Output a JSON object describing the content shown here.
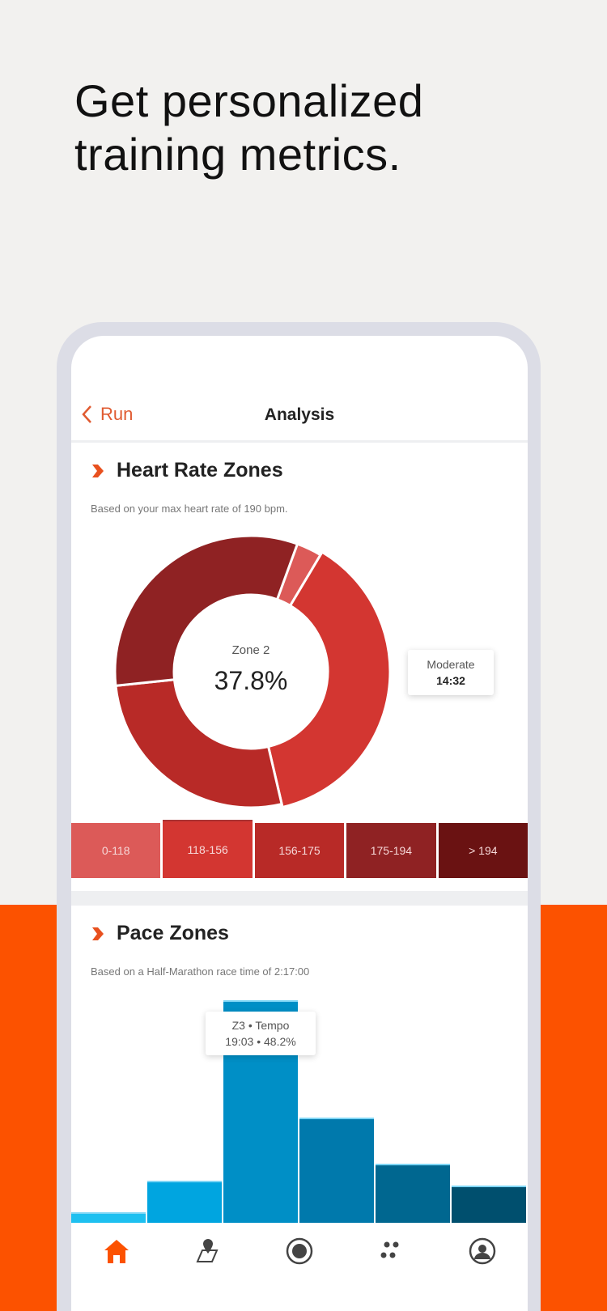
{
  "headline": {
    "line1": "Get personalized",
    "line2": "training metrics."
  },
  "nav": {
    "back_label": "Run",
    "title": "Analysis"
  },
  "heart_rate": {
    "title": "Heart Rate Zones",
    "subtitle": "Based on your max heart rate of 190 bpm.",
    "center_label": "Zone 2",
    "center_value": "37.8%",
    "tooltip_label": "Moderate",
    "tooltip_value": "14:32",
    "zones": [
      {
        "range": "0-118",
        "color": "#dc5a58",
        "percent": 3
      },
      {
        "range": "118-156",
        "color": "#d33631",
        "percent": 37.8
      },
      {
        "range": "156-175",
        "color": "#b82a27",
        "percent": 27
      },
      {
        "range": "175-194",
        "color": "#8f2223",
        "percent": 32.2
      },
      {
        "range": "> 194",
        "color": "#6a1212",
        "percent": 0
      }
    ]
  },
  "pace": {
    "title": "Pace Zones",
    "subtitle": "Based on a Half-Marathon race time of 2:17:00",
    "tooltip_line1": "Z3 • Tempo",
    "tooltip_line2": "19:03 • 48.2%",
    "bars": [
      {
        "percent": 2.3,
        "color": "#1ec0f0"
      },
      {
        "percent": 9.1,
        "color": "#00a5e0"
      },
      {
        "percent": 48.2,
        "color": "#008fc6"
      },
      {
        "percent": 22.8,
        "color": "#0079ac"
      },
      {
        "percent": 12.8,
        "color": "#006790"
      },
      {
        "percent": 8.1,
        "color": "#004f6e"
      }
    ]
  },
  "tabs": [
    {
      "icon": "home-icon",
      "active": true
    },
    {
      "icon": "maps-icon"
    },
    {
      "icon": "record-icon"
    },
    {
      "icon": "groups-icon"
    },
    {
      "icon": "profile-icon"
    }
  ],
  "colors": {
    "accent": "#fc5200",
    "back": "#e05a30"
  }
}
